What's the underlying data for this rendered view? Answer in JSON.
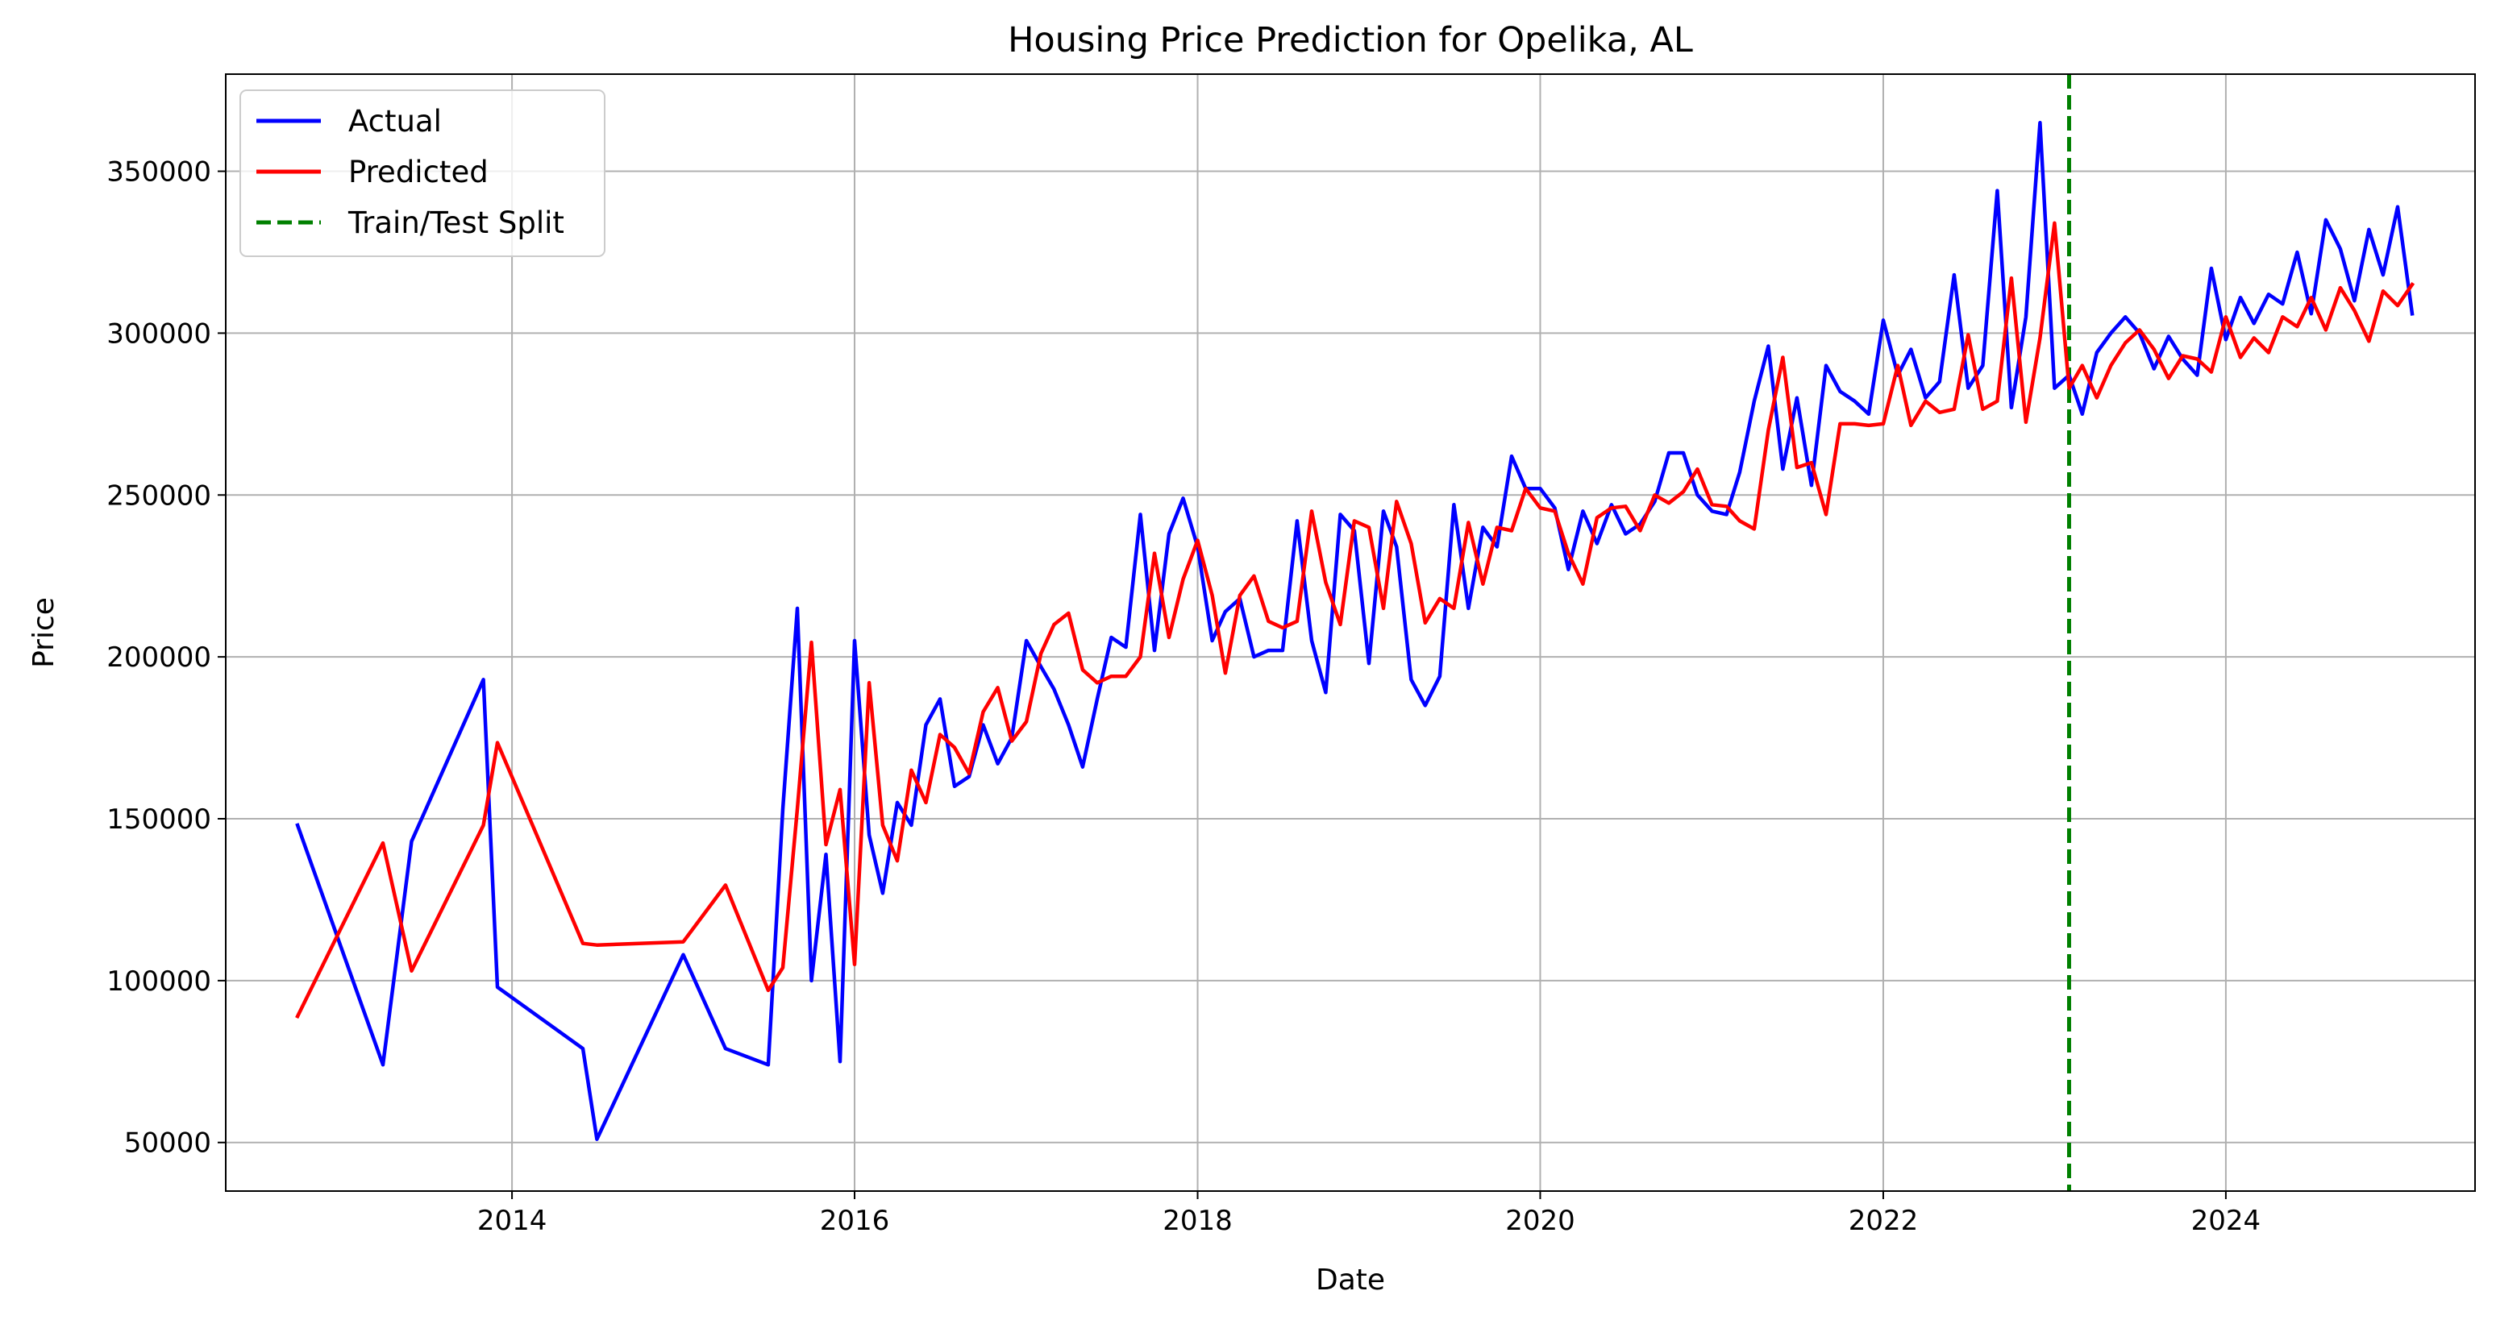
{
  "chart_data": {
    "type": "line",
    "title": "Housing Price Prediction for Opelika, AL",
    "xlabel": "Date",
    "ylabel": "Price",
    "xlim": [
      "2012-05-01",
      "2025-06-15"
    ],
    "ylim": [
      35000,
      380000
    ],
    "x_ticks": [
      "2014",
      "2016",
      "2018",
      "2020",
      "2022",
      "2024"
    ],
    "y_ticks": [
      50000,
      100000,
      150000,
      200000,
      250000,
      300000,
      350000
    ],
    "grid": true,
    "legend_position": "top-left",
    "colors": {
      "actual": "#0000ff",
      "predicted": "#ff0000",
      "split": "#008000",
      "grid": "#b0b0b0"
    },
    "split_date": "2023-02-01",
    "series": [
      {
        "name": "Actual",
        "color": "#0000ff",
        "style": "solid",
        "points": [
          [
            "2012-10-01",
            148000
          ],
          [
            "2013-04-01",
            74000
          ],
          [
            "2013-06-01",
            143000
          ],
          [
            "2013-11-01",
            193000
          ],
          [
            "2013-12-01",
            98000
          ],
          [
            "2014-06-01",
            79000
          ],
          [
            "2014-07-01",
            51000
          ],
          [
            "2015-01-01",
            108000
          ],
          [
            "2015-04-01",
            79000
          ],
          [
            "2015-07-01",
            74000
          ],
          [
            "2015-08-01",
            153000
          ],
          [
            "2015-09-01",
            215000
          ],
          [
            "2015-10-01",
            100000
          ],
          [
            "2015-11-01",
            139000
          ],
          [
            "2015-12-01",
            75000
          ],
          [
            "2016-01-01",
            205000
          ],
          [
            "2016-02-01",
            145000
          ],
          [
            "2016-03-01",
            127000
          ],
          [
            "2016-04-01",
            155000
          ],
          [
            "2016-05-01",
            148000
          ],
          [
            "2016-06-01",
            179000
          ],
          [
            "2016-07-01",
            187000
          ],
          [
            "2016-08-01",
            160000
          ],
          [
            "2016-09-01",
            163000
          ],
          [
            "2016-10-01",
            179000
          ],
          [
            "2016-11-01",
            167000
          ],
          [
            "2016-12-01",
            175000
          ],
          [
            "2017-01-01",
            205000
          ],
          [
            "2017-02-01",
            197000
          ],
          [
            "2017-03-01",
            190000
          ],
          [
            "2017-04-01",
            179000
          ],
          [
            "2017-05-01",
            166000
          ],
          [
            "2017-06-01",
            187000
          ],
          [
            "2017-07-01",
            206000
          ],
          [
            "2017-08-01",
            203000
          ],
          [
            "2017-09-01",
            244000
          ],
          [
            "2017-10-01",
            202000
          ],
          [
            "2017-11-01",
            238000
          ],
          [
            "2017-12-01",
            249000
          ],
          [
            "2018-01-01",
            234000
          ],
          [
            "2018-02-01",
            205000
          ],
          [
            "2018-03-01",
            214000
          ],
          [
            "2018-04-01",
            218000
          ],
          [
            "2018-05-01",
            200000
          ],
          [
            "2018-06-01",
            202000
          ],
          [
            "2018-07-01",
            202000
          ],
          [
            "2018-08-01",
            242000
          ],
          [
            "2018-09-01",
            205000
          ],
          [
            "2018-10-01",
            189000
          ],
          [
            "2018-11-01",
            244000
          ],
          [
            "2018-12-01",
            239000
          ],
          [
            "2019-01-01",
            198000
          ],
          [
            "2019-02-01",
            245000
          ],
          [
            "2019-03-01",
            234000
          ],
          [
            "2019-04-01",
            193000
          ],
          [
            "2019-05-01",
            185000
          ],
          [
            "2019-06-01",
            194000
          ],
          [
            "2019-07-01",
            247000
          ],
          [
            "2019-08-01",
            215000
          ],
          [
            "2019-09-01",
            240000
          ],
          [
            "2019-10-01",
            234000
          ],
          [
            "2019-11-01",
            262000
          ],
          [
            "2019-12-01",
            252000
          ],
          [
            "2020-01-01",
            252000
          ],
          [
            "2020-02-01",
            246000
          ],
          [
            "2020-03-01",
            227000
          ],
          [
            "2020-04-01",
            245000
          ],
          [
            "2020-05-01",
            235000
          ],
          [
            "2020-06-01",
            247000
          ],
          [
            "2020-07-01",
            238000
          ],
          [
            "2020-08-01",
            241000
          ],
          [
            "2020-09-01",
            248000
          ],
          [
            "2020-10-01",
            263000
          ],
          [
            "2020-11-01",
            263000
          ],
          [
            "2020-12-01",
            250000
          ],
          [
            "2021-01-01",
            245000
          ],
          [
            "2021-02-01",
            244000
          ],
          [
            "2021-03-01",
            257000
          ],
          [
            "2021-04-01",
            279000
          ],
          [
            "2021-05-01",
            296000
          ],
          [
            "2021-06-01",
            258000
          ],
          [
            "2021-07-01",
            280000
          ],
          [
            "2021-08-01",
            253000
          ],
          [
            "2021-09-01",
            290000
          ],
          [
            "2021-10-01",
            282000
          ],
          [
            "2021-11-01",
            279000
          ],
          [
            "2021-12-01",
            275000
          ],
          [
            "2022-01-01",
            304000
          ],
          [
            "2022-02-01",
            287000
          ],
          [
            "2022-03-01",
            295000
          ],
          [
            "2022-04-01",
            280000
          ],
          [
            "2022-05-01",
            285000
          ],
          [
            "2022-06-01",
            318000
          ],
          [
            "2022-07-01",
            283000
          ],
          [
            "2022-08-01",
            290000
          ],
          [
            "2022-09-01",
            344000
          ],
          [
            "2022-10-01",
            277000
          ],
          [
            "2022-11-01",
            305000
          ],
          [
            "2022-12-01",
            365000
          ],
          [
            "2023-01-01",
            283000
          ],
          [
            "2023-02-01",
            287000
          ],
          [
            "2023-03-01",
            275000
          ],
          [
            "2023-04-01",
            294000
          ],
          [
            "2023-05-01",
            300000
          ],
          [
            "2023-06-01",
            305000
          ],
          [
            "2023-07-01",
            300000
          ],
          [
            "2023-08-01",
            289000
          ],
          [
            "2023-09-01",
            299000
          ],
          [
            "2023-10-01",
            292000
          ],
          [
            "2023-11-01",
            287000
          ],
          [
            "2023-12-01",
            320000
          ],
          [
            "2024-01-01",
            298000
          ],
          [
            "2024-02-01",
            311000
          ],
          [
            "2024-03-01",
            303000
          ],
          [
            "2024-04-01",
            312000
          ],
          [
            "2024-05-01",
            309000
          ],
          [
            "2024-06-01",
            325000
          ],
          [
            "2024-07-01",
            306000
          ],
          [
            "2024-08-01",
            335000
          ],
          [
            "2024-09-01",
            326000
          ],
          [
            "2024-10-01",
            310000
          ],
          [
            "2024-11-01",
            332000
          ],
          [
            "2024-12-01",
            318000
          ],
          [
            "2025-01-01",
            339000
          ],
          [
            "2025-02-01",
            306000
          ]
        ]
      },
      {
        "name": "Predicted",
        "color": "#ff0000",
        "style": "solid",
        "points": [
          [
            "2012-10-01",
            89000
          ],
          [
            "2013-04-01",
            142500
          ],
          [
            "2013-06-01",
            103000
          ],
          [
            "2013-11-01",
            148000
          ],
          [
            "2013-12-01",
            173500
          ],
          [
            "2014-06-01",
            111500
          ],
          [
            "2014-07-01",
            111000
          ],
          [
            "2015-01-01",
            112000
          ],
          [
            "2015-04-01",
            129500
          ],
          [
            "2015-07-01",
            97000
          ],
          [
            "2015-08-01",
            104000
          ],
          [
            "2015-09-01",
            153000
          ],
          [
            "2015-10-01",
            204500
          ],
          [
            "2015-11-01",
            142000
          ],
          [
            "2015-12-01",
            159000
          ],
          [
            "2016-01-01",
            105000
          ],
          [
            "2016-02-01",
            192000
          ],
          [
            "2016-03-01",
            148000
          ],
          [
            "2016-04-01",
            137000
          ],
          [
            "2016-05-01",
            165000
          ],
          [
            "2016-06-01",
            155000
          ],
          [
            "2016-07-01",
            176000
          ],
          [
            "2016-08-01",
            172000
          ],
          [
            "2016-09-01",
            164000
          ],
          [
            "2016-10-01",
            183000
          ],
          [
            "2016-11-01",
            190500
          ],
          [
            "2016-12-01",
            174000
          ],
          [
            "2017-01-01",
            180000
          ],
          [
            "2017-02-01",
            201000
          ],
          [
            "2017-03-01",
            210000
          ],
          [
            "2017-04-01",
            213500
          ],
          [
            "2017-05-01",
            196000
          ],
          [
            "2017-06-01",
            192000
          ],
          [
            "2017-07-01",
            194000
          ],
          [
            "2017-08-01",
            194000
          ],
          [
            "2017-09-01",
            200000
          ],
          [
            "2017-10-01",
            232000
          ],
          [
            "2017-11-01",
            206000
          ],
          [
            "2017-12-01",
            224000
          ],
          [
            "2018-01-01",
            236000
          ],
          [
            "2018-02-01",
            219000
          ],
          [
            "2018-03-01",
            195000
          ],
          [
            "2018-04-01",
            219000
          ],
          [
            "2018-05-01",
            225000
          ],
          [
            "2018-06-01",
            211000
          ],
          [
            "2018-07-01",
            209000
          ],
          [
            "2018-08-01",
            211000
          ],
          [
            "2018-09-01",
            245000
          ],
          [
            "2018-10-01",
            223000
          ],
          [
            "2018-11-01",
            210000
          ],
          [
            "2018-12-01",
            242000
          ],
          [
            "2019-01-01",
            240000
          ],
          [
            "2019-02-01",
            215000
          ],
          [
            "2019-03-01",
            248000
          ],
          [
            "2019-04-01",
            235000
          ],
          [
            "2019-05-01",
            210500
          ],
          [
            "2019-06-01",
            218000
          ],
          [
            "2019-07-01",
            215000
          ],
          [
            "2019-08-01",
            241500
          ],
          [
            "2019-09-01",
            222500
          ],
          [
            "2019-10-01",
            240000
          ],
          [
            "2019-11-01",
            239000
          ],
          [
            "2019-12-01",
            252000
          ],
          [
            "2020-01-01",
            246000
          ],
          [
            "2020-02-01",
            245000
          ],
          [
            "2020-03-01",
            232000
          ],
          [
            "2020-04-01",
            222500
          ],
          [
            "2020-05-01",
            243000
          ],
          [
            "2020-06-01",
            246000
          ],
          [
            "2020-07-01",
            246500
          ],
          [
            "2020-08-01",
            239000
          ],
          [
            "2020-09-01",
            250000
          ],
          [
            "2020-10-01",
            247500
          ],
          [
            "2020-11-01",
            251000
          ],
          [
            "2020-12-01",
            258000
          ],
          [
            "2021-01-01",
            247000
          ],
          [
            "2021-02-01",
            246500
          ],
          [
            "2021-03-01",
            242000
          ],
          [
            "2021-04-01",
            239500
          ],
          [
            "2021-05-01",
            270000
          ],
          [
            "2021-06-01",
            292500
          ],
          [
            "2021-07-01",
            258500
          ],
          [
            "2021-08-01",
            260000
          ],
          [
            "2021-09-01",
            244000
          ],
          [
            "2021-10-01",
            272000
          ],
          [
            "2021-11-01",
            272000
          ],
          [
            "2021-12-01",
            271500
          ],
          [
            "2022-01-01",
            272000
          ],
          [
            "2022-02-01",
            290000
          ],
          [
            "2022-03-01",
            271500
          ],
          [
            "2022-04-01",
            279000
          ],
          [
            "2022-05-01",
            275500
          ],
          [
            "2022-06-01",
            276500
          ],
          [
            "2022-07-01",
            299500
          ],
          [
            "2022-08-01",
            276500
          ],
          [
            "2022-09-01",
            279000
          ],
          [
            "2022-10-01",
            317000
          ],
          [
            "2022-11-01",
            272500
          ],
          [
            "2022-12-01",
            298500
          ],
          [
            "2023-01-01",
            334000
          ],
          [
            "2023-02-01",
            283000
          ],
          [
            "2023-03-01",
            290000
          ],
          [
            "2023-04-01",
            280000
          ],
          [
            "2023-05-01",
            290000
          ],
          [
            "2023-06-01",
            297000
          ],
          [
            "2023-07-01",
            301000
          ],
          [
            "2023-08-01",
            295000
          ],
          [
            "2023-09-01",
            286000
          ],
          [
            "2023-10-01",
            293000
          ],
          [
            "2023-11-01",
            292000
          ],
          [
            "2023-12-01",
            288000
          ],
          [
            "2024-01-01",
            305000
          ],
          [
            "2024-02-01",
            292500
          ],
          [
            "2024-03-01",
            298500
          ],
          [
            "2024-04-01",
            294000
          ],
          [
            "2024-05-01",
            305000
          ],
          [
            "2024-06-01",
            302000
          ],
          [
            "2024-07-01",
            311000
          ],
          [
            "2024-08-01",
            301000
          ],
          [
            "2024-09-01",
            314000
          ],
          [
            "2024-10-01",
            307000
          ],
          [
            "2024-11-01",
            297500
          ],
          [
            "2024-12-01",
            313000
          ],
          [
            "2025-01-01",
            308500
          ],
          [
            "2025-02-01",
            315000
          ]
        ]
      }
    ],
    "legend": [
      {
        "label": "Actual",
        "color": "#0000ff",
        "style": "solid"
      },
      {
        "label": "Predicted",
        "color": "#ff0000",
        "style": "solid"
      },
      {
        "label": "Train/Test Split",
        "color": "#008000",
        "style": "dashed"
      }
    ]
  }
}
